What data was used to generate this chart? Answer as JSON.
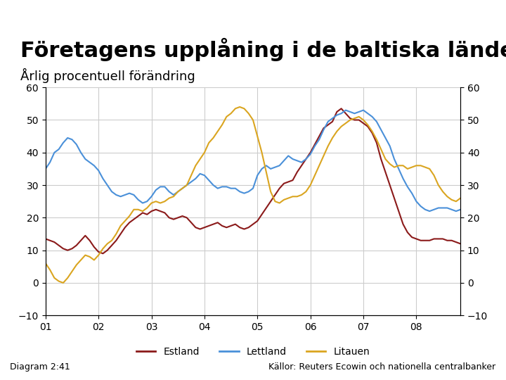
{
  "title": "Företagens upplåning i de baltiska länderna",
  "subtitle": "Årlig procentuell förändring",
  "footer_bar_color": "#003399",
  "footer_left": "Diagram 2:41",
  "footer_right": "Källor: Reuters Ecowin och nationella centralbanker",
  "legend_labels": [
    "Estland",
    "Lettland",
    "Litauen"
  ],
  "colors": [
    "#8B1A1A",
    "#4A90D9",
    "#DAA520"
  ],
  "ylim": [
    -10,
    60
  ],
  "yticks": [
    -10,
    0,
    10,
    20,
    30,
    40,
    50,
    60
  ],
  "xticks_labels": [
    "01",
    "02",
    "03",
    "04",
    "05",
    "06",
    "07",
    "08"
  ],
  "background_color": "#FFFFFF",
  "title_fontsize": 22,
  "subtitle_fontsize": 13,
  "estland_x": [
    0,
    1,
    2,
    3,
    4,
    5,
    6,
    7,
    8,
    9,
    10,
    11,
    12,
    13,
    14,
    15,
    16,
    17,
    18,
    19,
    20,
    21,
    22,
    23,
    24,
    25,
    26,
    27,
    28,
    29,
    30,
    31,
    32,
    33,
    34,
    35,
    36,
    37,
    38,
    39,
    40,
    41,
    42,
    43,
    44,
    45,
    46,
    47,
    48,
    49,
    50,
    51,
    52,
    53,
    54,
    55,
    56,
    57,
    58,
    59,
    60,
    61,
    62,
    63,
    64,
    65,
    66,
    67,
    68,
    69,
    70,
    71,
    72,
    73,
    74,
    75,
    76,
    77,
    78,
    79,
    80,
    81,
    82,
    83,
    84,
    85,
    86,
    87,
    88,
    89,
    90,
    91,
    92,
    93,
    94
  ],
  "estland_y": [
    13.5,
    13.0,
    12.5,
    11.5,
    10.5,
    10.0,
    10.5,
    11.5,
    13.0,
    14.5,
    13.0,
    11.0,
    9.5,
    9.0,
    10.0,
    11.5,
    13.0,
    15.0,
    17.0,
    18.5,
    19.5,
    20.5,
    21.5,
    21.0,
    22.0,
    22.5,
    22.0,
    21.5,
    20.0,
    19.5,
    20.0,
    20.5,
    20.0,
    18.5,
    17.0,
    16.5,
    17.0,
    17.5,
    18.0,
    18.5,
    17.5,
    17.0,
    17.5,
    18.0,
    17.0,
    16.5,
    17.0,
    18.0,
    19.0,
    21.0,
    23.0,
    25.0,
    27.0,
    29.0,
    30.5,
    31.0,
    31.5,
    34.0,
    36.0,
    38.0,
    40.0,
    42.5,
    45.0,
    47.5,
    48.5,
    49.5,
    52.5,
    53.5,
    52.0,
    50.5,
    50.0,
    50.0,
    49.0,
    48.0,
    46.0,
    43.0,
    38.0,
    34.0,
    30.0,
    26.0,
    22.0,
    18.0,
    15.5,
    14.0,
    13.5,
    13.0,
    13.0,
    13.0,
    13.5,
    13.5,
    13.5,
    13.0,
    13.0,
    12.5,
    12.0
  ],
  "lettland_x": [
    0,
    1,
    2,
    3,
    4,
    5,
    6,
    7,
    8,
    9,
    10,
    11,
    12,
    13,
    14,
    15,
    16,
    17,
    18,
    19,
    20,
    21,
    22,
    23,
    24,
    25,
    26,
    27,
    28,
    29,
    30,
    31,
    32,
    33,
    34,
    35,
    36,
    37,
    38,
    39,
    40,
    41,
    42,
    43,
    44,
    45,
    46,
    47,
    48,
    49,
    50,
    51,
    52,
    53,
    54,
    55,
    56,
    57,
    58,
    59,
    60,
    61,
    62,
    63,
    64,
    65,
    66,
    67,
    68,
    69,
    70,
    71,
    72,
    73,
    74,
    75,
    76,
    77,
    78,
    79,
    80,
    81,
    82,
    83,
    84,
    85,
    86,
    87,
    88,
    89,
    90,
    91,
    92,
    93,
    94
  ],
  "lettland_y": [
    35.0,
    37.0,
    40.0,
    41.0,
    43.0,
    44.5,
    44.0,
    42.5,
    40.0,
    38.0,
    37.0,
    36.0,
    34.5,
    32.0,
    30.0,
    28.0,
    27.0,
    26.5,
    27.0,
    27.5,
    27.0,
    25.5,
    24.5,
    25.0,
    26.5,
    28.5,
    29.5,
    29.5,
    28.0,
    27.0,
    28.0,
    29.0,
    30.0,
    31.0,
    32.0,
    33.5,
    33.0,
    31.5,
    30.0,
    29.0,
    29.5,
    29.5,
    29.0,
    29.0,
    28.0,
    27.5,
    28.0,
    29.0,
    33.0,
    35.0,
    36.0,
    35.0,
    35.5,
    36.0,
    37.5,
    39.0,
    38.0,
    37.5,
    37.0,
    38.0,
    39.5,
    42.0,
    44.0,
    47.0,
    49.5,
    50.5,
    51.5,
    52.0,
    53.0,
    52.5,
    52.0,
    52.5,
    53.0,
    52.0,
    51.0,
    49.5,
    47.0,
    44.5,
    42.0,
    38.0,
    35.0,
    32.0,
    29.5,
    27.5,
    25.0,
    23.5,
    22.5,
    22.0,
    22.5,
    23.0,
    23.0,
    23.0,
    22.5,
    22.0,
    22.5
  ],
  "litauen_x": [
    0,
    1,
    2,
    3,
    4,
    5,
    6,
    7,
    8,
    9,
    10,
    11,
    12,
    13,
    14,
    15,
    16,
    17,
    18,
    19,
    20,
    21,
    22,
    23,
    24,
    25,
    26,
    27,
    28,
    29,
    30,
    31,
    32,
    33,
    34,
    35,
    36,
    37,
    38,
    39,
    40,
    41,
    42,
    43,
    44,
    45,
    46,
    47,
    48,
    49,
    50,
    51,
    52,
    53,
    54,
    55,
    56,
    57,
    58,
    59,
    60,
    61,
    62,
    63,
    64,
    65,
    66,
    67,
    68,
    69,
    70,
    71,
    72,
    73,
    74,
    75,
    76,
    77,
    78,
    79,
    80,
    81,
    82,
    83,
    84,
    85,
    86,
    87,
    88,
    89,
    90,
    91,
    92,
    93,
    94
  ],
  "litauen_y": [
    6.0,
    4.0,
    1.5,
    0.5,
    0.0,
    1.5,
    3.5,
    5.5,
    7.0,
    8.5,
    8.0,
    7.0,
    8.5,
    10.5,
    12.0,
    13.0,
    15.0,
    17.5,
    19.0,
    20.5,
    22.5,
    22.5,
    22.0,
    23.0,
    24.5,
    25.0,
    24.5,
    25.0,
    26.0,
    26.5,
    28.0,
    29.0,
    30.0,
    33.0,
    36.0,
    38.0,
    40.0,
    43.0,
    44.5,
    46.5,
    48.5,
    51.0,
    52.0,
    53.5,
    54.0,
    53.5,
    52.0,
    50.0,
    45.0,
    40.0,
    34.0,
    28.0,
    25.0,
    24.5,
    25.5,
    26.0,
    26.5,
    26.5,
    27.0,
    28.0,
    30.0,
    33.0,
    36.0,
    39.0,
    42.0,
    44.5,
    46.5,
    48.0,
    49.0,
    50.0,
    50.5,
    51.0,
    50.0,
    48.5,
    46.5,
    44.0,
    41.0,
    38.0,
    36.5,
    35.5,
    36.0,
    36.0,
    35.0,
    35.5,
    36.0,
    36.0,
    35.5,
    35.0,
    33.0,
    30.0,
    28.0,
    26.5,
    25.5,
    25.0,
    26.0
  ]
}
